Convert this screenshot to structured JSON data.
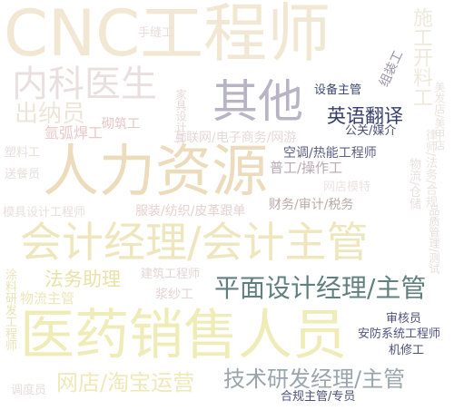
{
  "words": [
    {
      "text": "CNC工程师",
      "color": "#f1e7d2"
    },
    {
      "text": "手缝工",
      "color": "#e8dcdc"
    },
    {
      "text": "施工开料工",
      "color": "#efe9dc"
    },
    {
      "text": "内科医生",
      "color": "#eadfe0"
    },
    {
      "text": "其他",
      "color": "#b9b3c6"
    },
    {
      "text": "设备主管",
      "color": "#3e4a74"
    },
    {
      "text": "组装工",
      "color": "#9a92a6"
    },
    {
      "text": "出纳员",
      "color": "#eee5d9"
    },
    {
      "text": "砌筑工",
      "color": "#e7c4c4"
    },
    {
      "text": "英语翻译",
      "color": "#343d6c"
    },
    {
      "text": "公关/媒介",
      "color": "#4a4f7a"
    },
    {
      "text": "氩弧焊工",
      "color": "#e8c9c9"
    },
    {
      "text": "互联网/电子商务/网游",
      "color": "#e6d8d8"
    },
    {
      "text": "空调/热能工程师",
      "color": "#5b5d84"
    },
    {
      "text": "人力资源",
      "color": "#ecdcbb"
    },
    {
      "text": "普工/操作工",
      "color": "#b9a9b3"
    },
    {
      "text": "网店模特",
      "color": "#ece3e3"
    },
    {
      "text": "财务/审计/税务",
      "color": "#bba9a5"
    },
    {
      "text": "服装/纺织/皮革跟单",
      "color": "#e6d2cf"
    },
    {
      "text": "会计经理/会计主管",
      "color": "#efe6bd"
    },
    {
      "text": "法务助理",
      "color": "#e9e2a8"
    },
    {
      "text": "建筑工程师",
      "color": "#e5d5d5"
    },
    {
      "text": "平面设计经理/主管",
      "color": "#5f807f"
    },
    {
      "text": "浆纱工",
      "color": "#e8d2d2"
    },
    {
      "text": "物流主管",
      "color": "#ece7b5"
    },
    {
      "text": "医药销售人员",
      "color": "#f0ecb8"
    },
    {
      "text": "审核员",
      "color": "#4f527c"
    },
    {
      "text": "安防系统工程师",
      "color": "#4f5480"
    },
    {
      "text": "机修工",
      "color": "#4a4e79"
    },
    {
      "text": "网店/淘宝运营",
      "color": "#efe9b7"
    },
    {
      "text": "技术研发经理/主管",
      "color": "#98a6ac"
    },
    {
      "text": "合规主管/专员",
      "color": "#4c517c"
    },
    {
      "text": "调度员",
      "color": "#e8dcdc"
    },
    {
      "text": "塑料工",
      "color": "#e8dede"
    },
    {
      "text": "送餐员",
      "color": "#e8dede"
    },
    {
      "text": "模具设计工程师",
      "color": "#e9dfdf"
    },
    {
      "text": "涂料研发工程师",
      "color": "#e9e4b6"
    },
    {
      "text": "物流/仓储",
      "color": "#e8e0e0"
    },
    {
      "text": "律师/法务/合规",
      "color": "#eae2e2"
    },
    {
      "text": "家具设计师",
      "color": "#e6d8d8"
    },
    {
      "text": "品质管理/测试",
      "color": "#e8dede"
    },
    {
      "text": "美发店/美甲店",
      "color": "#eae2e2"
    }
  ]
}
